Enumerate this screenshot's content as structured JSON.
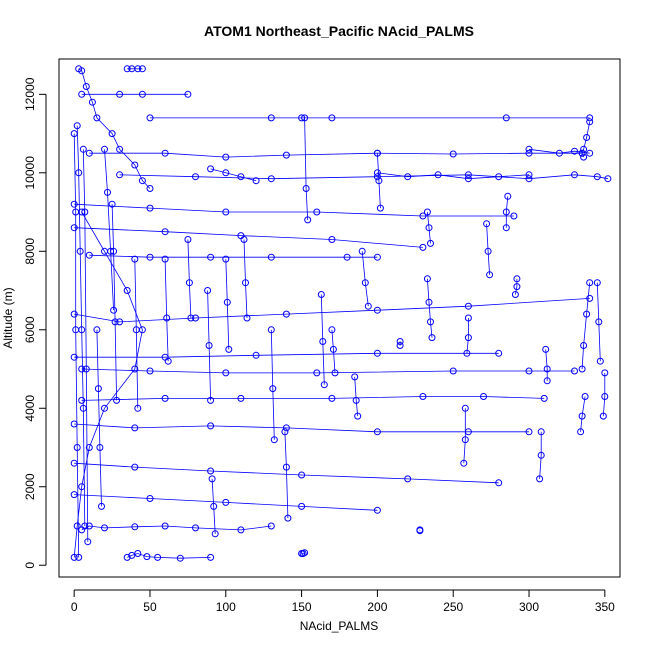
{
  "chart_data": {
    "type": "scatter",
    "title": "ATOM1 Northeast_Pacific NAcid_PALMS",
    "xlabel": "NAcid_PALMS",
    "ylabel": "Altitude (m)",
    "xlim": [
      -10,
      360
    ],
    "ylim": [
      -300,
      12900
    ],
    "xticks": [
      0,
      50,
      100,
      150,
      200,
      250,
      300,
      350
    ],
    "yticks": [
      0,
      2000,
      4000,
      6000,
      8000,
      10000,
      12000
    ],
    "series_color": "#0000ff",
    "marker": "open-circle",
    "connected": true,
    "profiles": [
      {
        "x": [
          0,
          2,
          5,
          10,
          20,
          40,
          45,
          35,
          20,
          5
        ],
        "y": [
          200,
          1000,
          2000,
          3000,
          4000,
          5000,
          6000,
          7000,
          8000,
          9000
        ]
      },
      {
        "x": [
          3,
          5,
          8,
          12,
          15,
          25,
          30,
          40,
          45,
          50
        ],
        "y": [
          12650,
          12600,
          12200,
          11800,
          11400,
          11000,
          10600,
          10200,
          9800,
          9600
        ]
      },
      {
        "x": [
          35,
          38,
          42,
          45
        ],
        "y": [
          12650,
          12650,
          12650,
          12650
        ]
      },
      {
        "x": [
          5,
          30,
          45,
          75
        ],
        "y": [
          12000,
          12000,
          12000,
          12000
        ]
      },
      {
        "x": [
          50,
          130,
          150,
          170,
          285,
          340
        ],
        "y": [
          11400,
          11400,
          11400,
          11400,
          11400,
          11400
        ]
      },
      {
        "x": [
          340,
          338,
          336,
          335,
          336
        ],
        "y": [
          11300,
          10900,
          10600,
          10500,
          10400
        ]
      },
      {
        "x": [
          10,
          60,
          100,
          140,
          200,
          250,
          300,
          335
        ],
        "y": [
          10500,
          10500,
          10400,
          10450,
          10500,
          10480,
          10500,
          10500
        ]
      },
      {
        "x": [
          30,
          80,
          130,
          200,
          260,
          300,
          330,
          345,
          352
        ],
        "y": [
          9950,
          9900,
          9850,
          9900,
          9950,
          9850,
          9950,
          9900,
          9850
        ]
      },
      {
        "x": [
          340,
          338,
          336,
          335
        ],
        "y": [
          7200,
          6400,
          5600,
          5000
        ]
      },
      {
        "x": [
          345,
          346,
          347
        ],
        "y": [
          7200,
          6200,
          5200
        ]
      },
      {
        "x": [
          350,
          350,
          349
        ],
        "y": [
          4900,
          4300,
          3800
        ]
      },
      {
        "x": [
          337,
          335,
          334
        ],
        "y": [
          4300,
          3800,
          3400
        ]
      },
      {
        "x": [
          311,
          312,
          312
        ],
        "y": [
          5500,
          5000,
          4700
        ]
      },
      {
        "x": [
          308,
          308,
          307
        ],
        "y": [
          3400,
          2800,
          2200
        ]
      },
      {
        "x": [
          292,
          292,
          291
        ],
        "y": [
          7300,
          7100,
          6900
        ]
      },
      {
        "x": [
          286,
          285,
          285
        ],
        "y": [
          9400,
          9000,
          8600
        ]
      },
      {
        "x": [
          272,
          273,
          274
        ],
        "y": [
          8700,
          8000,
          7400
        ]
      },
      {
        "x": [
          258,
          258,
          257
        ],
        "y": [
          4000,
          3200,
          2600
        ]
      },
      {
        "x": [
          260,
          260,
          259
        ],
        "y": [
          6300,
          5800,
          5400
        ]
      },
      {
        "x": [
          233,
          234,
          235
        ],
        "y": [
          9000,
          8600,
          8200
        ]
      },
      {
        "x": [
          233,
          234,
          235,
          236
        ],
        "y": [
          7300,
          6700,
          6200,
          5800
        ]
      },
      {
        "x": [
          228,
          228
        ],
        "y": [
          900,
          880
        ]
      },
      {
        "x": [
          215,
          215
        ],
        "y": [
          5700,
          5600
        ]
      },
      {
        "x": [
          200,
          201,
          202
        ],
        "y": [
          10500,
          9800,
          9100
        ]
      },
      {
        "x": [
          190,
          192,
          194
        ],
        "y": [
          8000,
          7200,
          6600
        ]
      },
      {
        "x": [
          185,
          186,
          187
        ],
        "y": [
          4800,
          4200,
          3800
        ]
      },
      {
        "x": [
          163,
          164,
          165
        ],
        "y": [
          6900,
          5700,
          4600
        ]
      },
      {
        "x": [
          170,
          171,
          172
        ],
        "y": [
          6000,
          5500,
          4900
        ]
      },
      {
        "x": [
          152,
          153,
          154
        ],
        "y": [
          11400,
          9600,
          8800
        ]
      },
      {
        "x": [
          150,
          151,
          152
        ],
        "y": [
          300,
          300,
          320
        ]
      },
      {
        "x": [
          139,
          140,
          141
        ],
        "y": [
          3400,
          2500,
          1200
        ]
      },
      {
        "x": [
          130,
          131,
          132
        ],
        "y": [
          6000,
          4500,
          3200
        ]
      },
      {
        "x": [
          112,
          113,
          114
        ],
        "y": [
          8300,
          7200,
          6300
        ]
      },
      {
        "x": [
          100,
          101,
          102
        ],
        "y": [
          7800,
          6700,
          5500
        ]
      },
      {
        "x": [
          88,
          89,
          90
        ],
        "y": [
          7000,
          5600,
          4200
        ]
      },
      {
        "x": [
          91,
          92,
          93
        ],
        "y": [
          2200,
          1500,
          800
        ]
      },
      {
        "x": [
          75,
          76,
          77
        ],
        "y": [
          8300,
          7200,
          6300
        ]
      },
      {
        "x": [
          60,
          61,
          62
        ],
        "y": [
          7800,
          6300,
          5200
        ]
      },
      {
        "x": [
          40,
          41,
          42
        ],
        "y": [
          7800,
          6000,
          4000
        ]
      },
      {
        "x": [
          25,
          26,
          27,
          28
        ],
        "y": [
          9200,
          8000,
          6200,
          4200
        ]
      },
      {
        "x": [
          15,
          16,
          17,
          18
        ],
        "y": [
          6000,
          4500,
          3000,
          1500
        ]
      },
      {
        "x": [
          35,
          38,
          42,
          48,
          55,
          70,
          90
        ],
        "y": [
          200,
          250,
          300,
          220,
          200,
          180,
          200
        ]
      },
      {
        "x": [
          5,
          10,
          20,
          40,
          60,
          80,
          110,
          130
        ],
        "y": [
          900,
          1000,
          950,
          980,
          1000,
          950,
          900,
          1000
        ]
      },
      {
        "x": [
          10,
          50,
          90,
          130,
          180,
          200
        ],
        "y": [
          7900,
          7850,
          7850,
          7850,
          7850,
          7850
        ]
      },
      {
        "x": [
          5,
          50,
          100,
          160,
          250,
          300,
          330
        ],
        "y": [
          5000,
          4950,
          4900,
          4900,
          4950,
          4950,
          4950
        ]
      },
      {
        "x": [
          5,
          60,
          110,
          170,
          230,
          270,
          310
        ],
        "y": [
          4200,
          4250,
          4250,
          4250,
          4300,
          4300,
          4250
        ]
      },
      {
        "x": [
          0,
          40,
          90,
          140,
          200,
          260,
          300
        ],
        "y": [
          3600,
          3500,
          3550,
          3500,
          3400,
          3400,
          3400
        ]
      },
      {
        "x": [
          0,
          30,
          80,
          140,
          200,
          260,
          340
        ],
        "y": [
          6400,
          6200,
          6300,
          6400,
          6500,
          6600,
          6800
        ]
      },
      {
        "x": [
          0,
          40,
          90,
          150,
          220,
          280
        ],
        "y": [
          2600,
          2500,
          2400,
          2300,
          2200,
          2100
        ]
      },
      {
        "x": [
          0,
          50,
          100,
          150,
          200
        ],
        "y": [
          1800,
          1700,
          1600,
          1500,
          1400
        ]
      },
      {
        "x": [
          0,
          60,
          110,
          170,
          230
        ],
        "y": [
          8600,
          8500,
          8400,
          8300,
          8100
        ]
      },
      {
        "x": [
          0,
          50,
          100,
          160,
          230,
          290
        ],
        "y": [
          9200,
          9100,
          9000,
          9000,
          8900,
          8900
        ]
      },
      {
        "x": [
          0,
          60,
          120,
          200,
          280
        ],
        "y": [
          5300,
          5300,
          5350,
          5400,
          5400
        ]
      },
      {
        "x": [
          2,
          3,
          4,
          5,
          6,
          7
        ],
        "y": [
          11200,
          10000,
          8000,
          6000,
          4000,
          1000
        ]
      },
      {
        "x": [
          0,
          1,
          1,
          2,
          3
        ],
        "y": [
          11000,
          9000,
          6000,
          3000,
          200
        ]
      },
      {
        "x": [
          6,
          7,
          8,
          9
        ],
        "y": [
          10600,
          9000,
          5000,
          600
        ]
      },
      {
        "x": [
          20,
          22,
          24,
          26
        ],
        "y": [
          10600,
          9500,
          8000,
          6500
        ]
      },
      {
        "x": [
          90,
          100,
          110,
          120
        ],
        "y": [
          10100,
          10000,
          9900,
          9800
        ]
      },
      {
        "x": [
          200,
          220,
          240,
          260,
          280,
          300
        ],
        "y": [
          10000,
          9900,
          9950,
          9850,
          9900,
          9950
        ]
      },
      {
        "x": [
          300,
          320,
          330,
          340
        ],
        "y": [
          10600,
          10500,
          10550,
          10500
        ]
      }
    ]
  }
}
